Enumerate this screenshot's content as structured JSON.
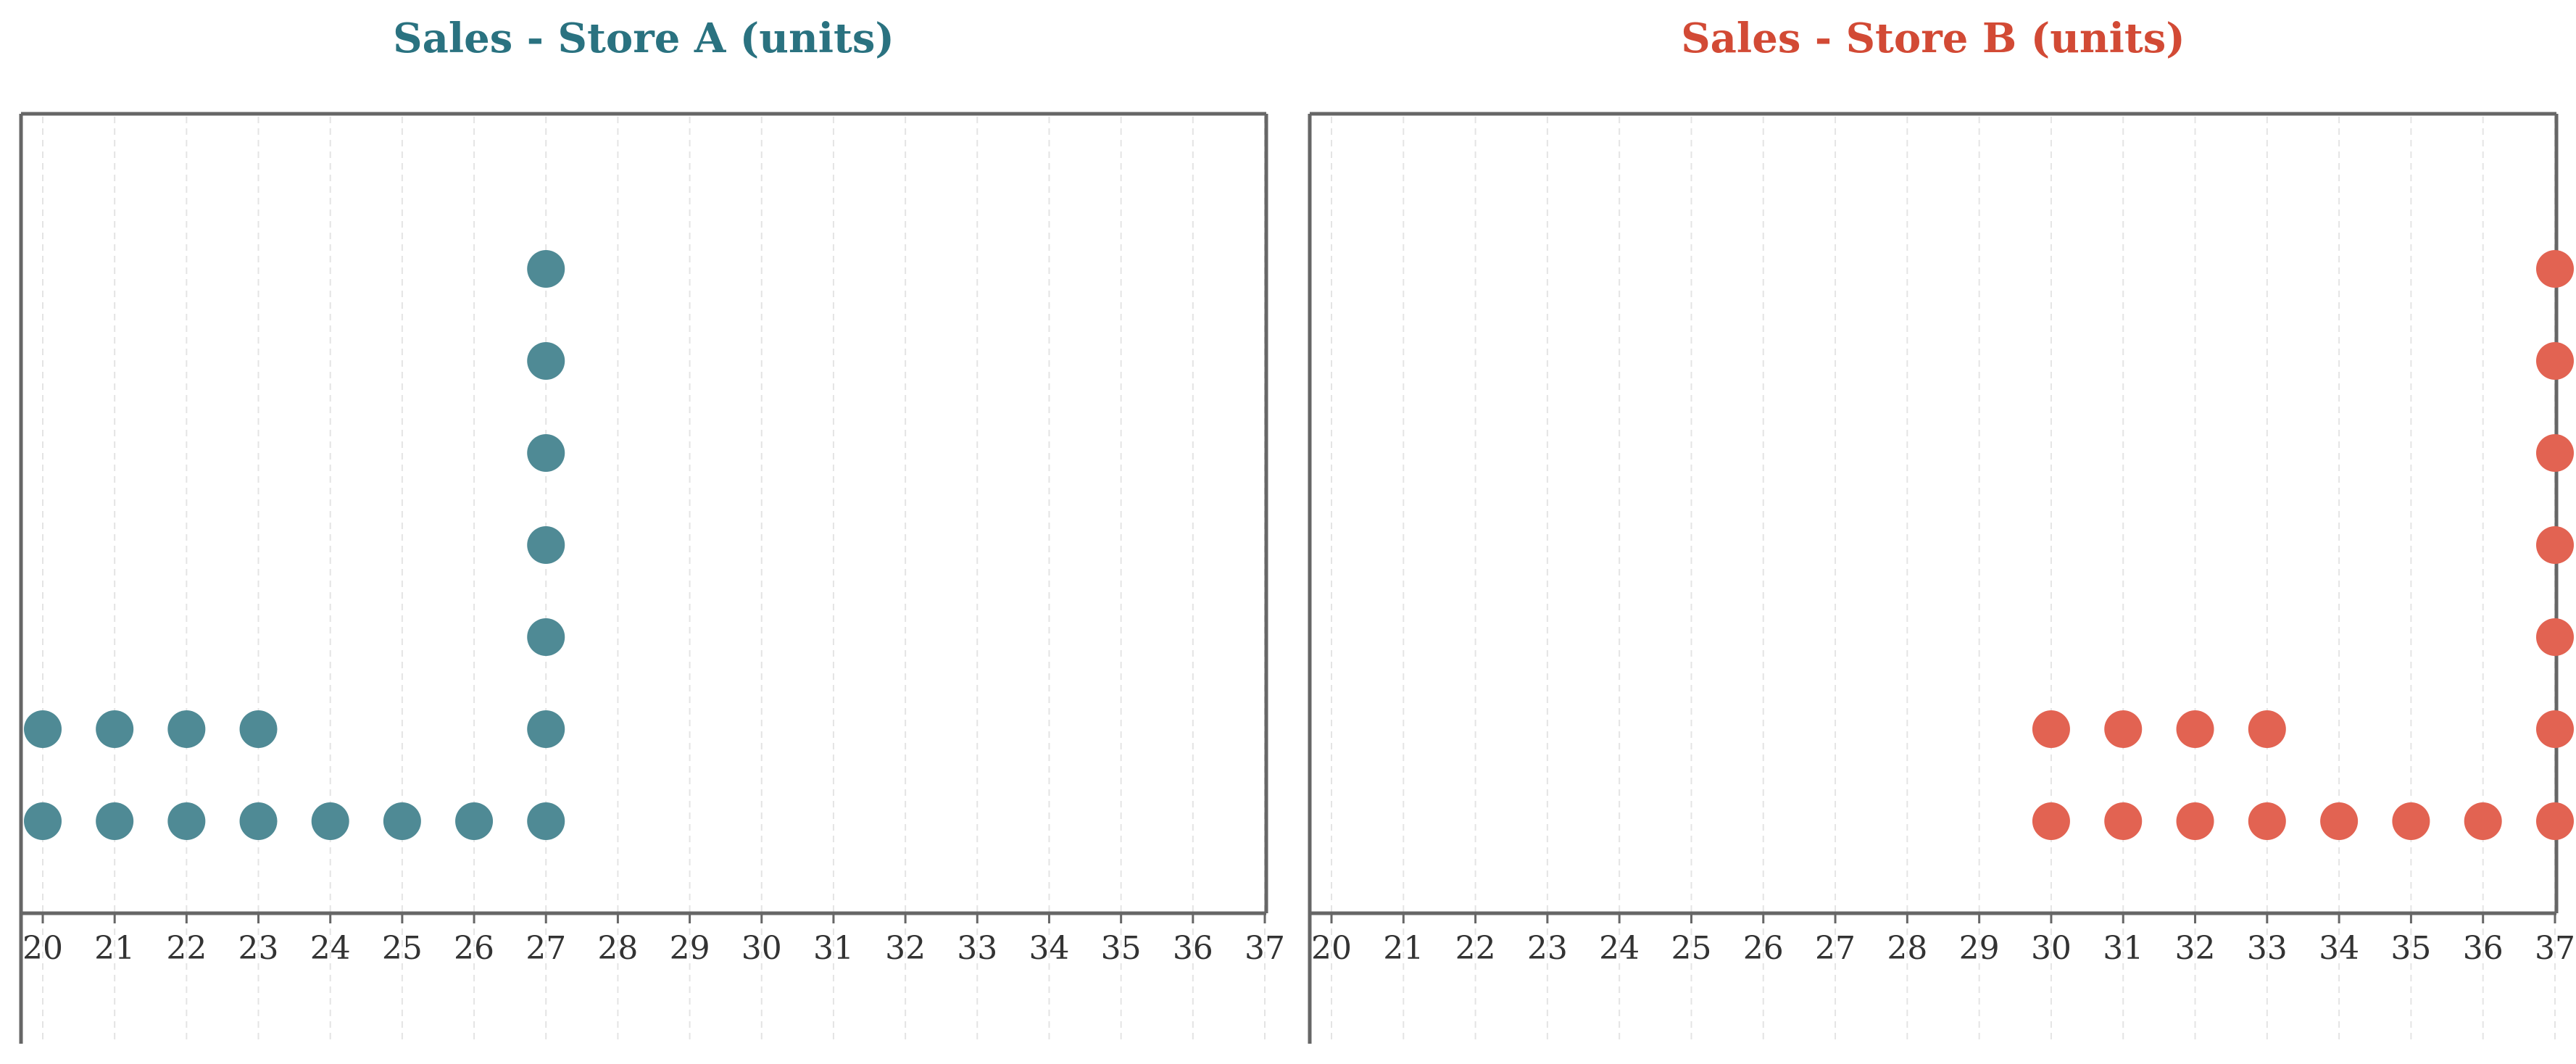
{
  "chart_data": [
    {
      "type": "scatter",
      "subtype": "dot-plot",
      "title": "Sales - Store A (units)",
      "color": "#4F8A95",
      "title_color": "#2A7280",
      "xlim": [
        20,
        37
      ],
      "xticks": [
        "20",
        "21",
        "22",
        "23",
        "24",
        "25",
        "26",
        "27",
        "28",
        "29",
        "30",
        "31",
        "32",
        "33",
        "34",
        "35",
        "36",
        "37"
      ],
      "x": [
        20,
        21,
        22,
        23,
        24,
        25,
        26,
        27
      ],
      "counts": [
        2,
        2,
        2,
        2,
        1,
        1,
        1,
        7
      ],
      "xlabel": "",
      "ylabel": "",
      "grid": "vertical dashed"
    },
    {
      "type": "scatter",
      "subtype": "dot-plot",
      "title": "Sales - Store B (units)",
      "color": "#E26352",
      "title_color": "#D24A35",
      "xlim": [
        20,
        37
      ],
      "xticks": [
        "20",
        "21",
        "22",
        "23",
        "24",
        "25",
        "26",
        "27",
        "28",
        "29",
        "30",
        "31",
        "32",
        "33",
        "34",
        "35",
        "36",
        "37"
      ],
      "x": [
        30,
        31,
        32,
        33,
        34,
        35,
        36,
        37
      ],
      "counts": [
        2,
        2,
        2,
        2,
        1,
        1,
        1,
        7
      ],
      "xlabel": "",
      "ylabel": "",
      "grid": "vertical dashed"
    }
  ]
}
